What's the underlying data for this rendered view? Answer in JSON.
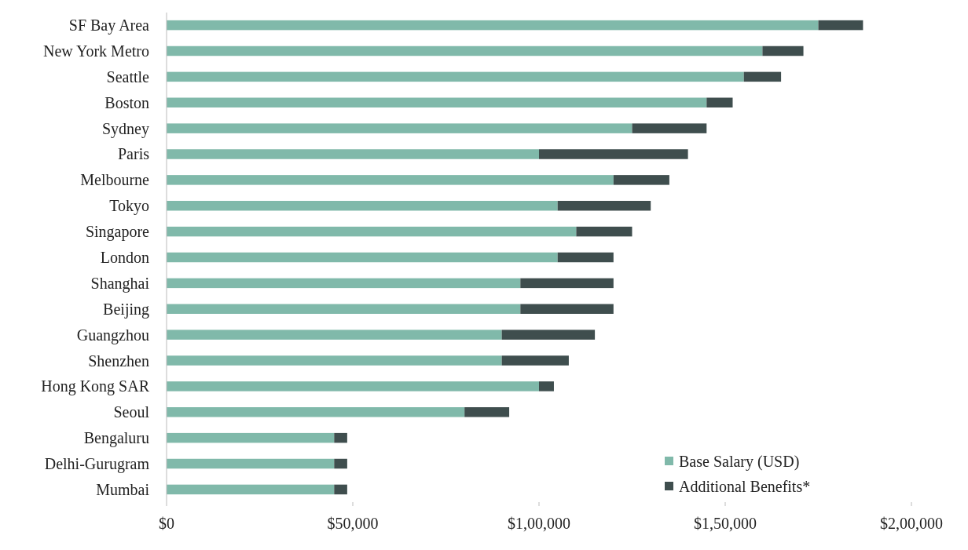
{
  "chart_data": {
    "type": "bar",
    "orientation": "horizontal",
    "stacked": true,
    "categories": [
      "SF Bay Area",
      "New York Metro",
      "Seattle",
      "Boston",
      "Sydney",
      "Paris",
      "Melbourne",
      "Tokyo",
      "Singapore",
      "London",
      "Shanghai",
      "Beijing",
      "Guangzhou",
      "Shenzhen",
      "Hong Kong SAR",
      "Seoul",
      "Bengaluru",
      "Delhi-Gurugram",
      "Mumbai"
    ],
    "series": [
      {
        "name": "Base Salary (USD)",
        "color": "#80b9aa",
        "values": [
          175000,
          160000,
          155000,
          145000,
          125000,
          100000,
          120000,
          105000,
          110000,
          105000,
          95000,
          95000,
          90000,
          90000,
          100000,
          80000,
          45000,
          45000,
          45000
        ]
      },
      {
        "name": "Additional Benefits*",
        "color": "#3f4e4e",
        "values": [
          12000,
          11000,
          10000,
          7000,
          20000,
          40000,
          15000,
          25000,
          15000,
          15000,
          25000,
          25000,
          25000,
          18000,
          4000,
          12000,
          3500,
          3500,
          3500
        ]
      }
    ],
    "xlim": [
      0,
      200000
    ],
    "xticks": [
      {
        "value": 0,
        "label": "$0"
      },
      {
        "value": 50000,
        "label": "$50,000"
      },
      {
        "value": 100000,
        "label": "$1,00,000"
      },
      {
        "value": 150000,
        "label": "$1,50,000"
      },
      {
        "value": 200000,
        "label": "$2,00,000"
      }
    ],
    "legend": "bottom right",
    "grid": false
  }
}
